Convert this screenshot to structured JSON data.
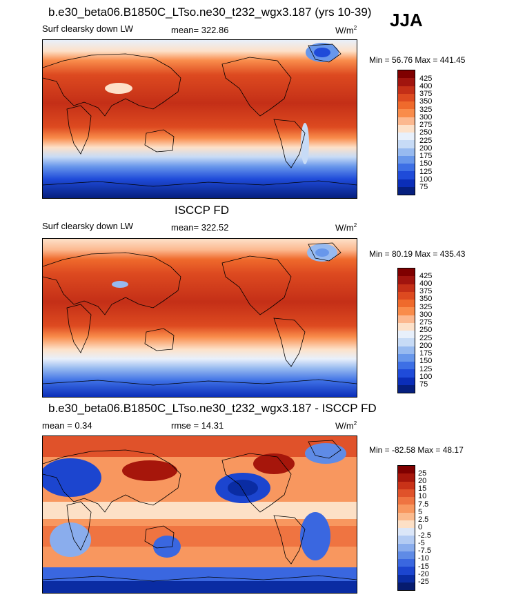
{
  "season": "JJA",
  "panels": [
    {
      "title": "b.e30_beta06.B1850C_LTso.ne30_t232_wgx3.187 (yrs 10-39)",
      "left": "Surf clearsky down LW",
      "center": "mean= 322.86",
      "units_base": "W/m",
      "units_exp": "2",
      "minmax": "Min =  56.76 Max = 441.45",
      "colorbar": [
        "425",
        "400",
        "375",
        "350",
        "325",
        "300",
        "275",
        "250",
        "225",
        "200",
        "175",
        "150",
        "125",
        "100",
        "75"
      ]
    },
    {
      "title": "ISCCP FD",
      "left": "Surf clearsky down LW",
      "center": "mean= 322.52",
      "units_base": "W/m",
      "units_exp": "2",
      "minmax": "Min =  80.19 Max = 435.43",
      "colorbar": [
        "425",
        "400",
        "375",
        "350",
        "325",
        "300",
        "275",
        "250",
        "225",
        "200",
        "175",
        "150",
        "125",
        "100",
        "75"
      ]
    },
    {
      "title": "b.e30_beta06.B1850C_LTso.ne30_t232_wgx3.187 - ISCCP FD",
      "left": "mean =   0.34",
      "center": "rmse =  14.31",
      "units_base": "W/m",
      "units_exp": "2",
      "minmax": "Min = -82.58 Max =  48.17",
      "colorbar": [
        "25",
        "20",
        "15",
        "10",
        "7.5",
        "5",
        "2.5",
        "0",
        "-2.5",
        "-5",
        "-7.5",
        "-10",
        "-15",
        "-20",
        "-25"
      ]
    }
  ],
  "colors": {
    "seq": [
      "#7f0000",
      "#a1140e",
      "#c42f17",
      "#dd4a20",
      "#ef6a2c",
      "#f98c4b",
      "#fcb88f",
      "#fde1c9",
      "#e8f0fb",
      "#c7dbf6",
      "#97baf0",
      "#6897eb",
      "#3d6fe5",
      "#1f4bd9",
      "#0b2eb8",
      "#061f7e"
    ],
    "div": [
      "#7f0000",
      "#a6160b",
      "#c93218",
      "#e0522a",
      "#ef7441",
      "#f8975f",
      "#fbba8d",
      "#fde0c6",
      "#dbe6f8",
      "#b3cbf3",
      "#8aaded",
      "#5f8be6",
      "#3a67e0",
      "#1c45cf",
      "#0a2ca3",
      "#061b6e"
    ]
  }
}
